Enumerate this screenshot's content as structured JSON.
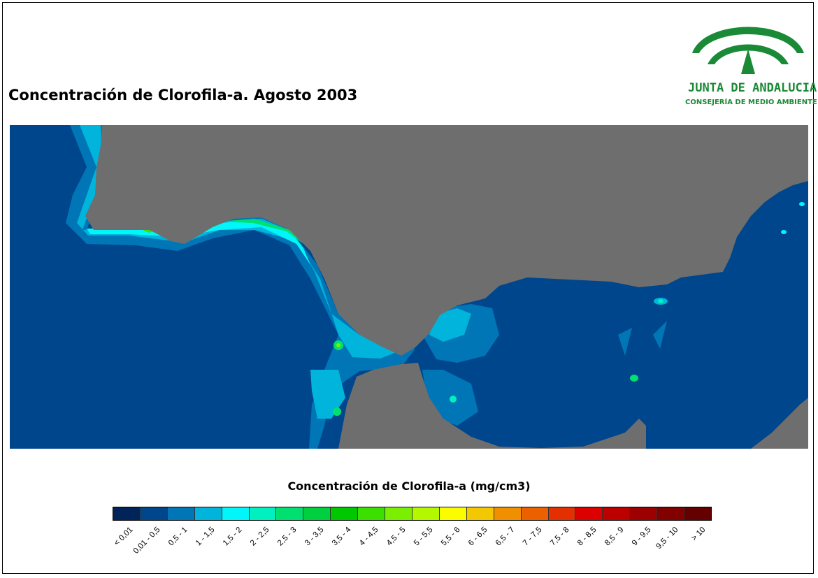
{
  "title": "Concentración de Clorofila-a. Agosto 2003",
  "logo": {
    "name": "JUNTA DE ANDALUCIA",
    "department": "CONSEJERÍA DE MEDIO AMBIENTE",
    "color": "#1a8a36"
  },
  "map": {
    "land_color": "#6e6e6e",
    "ocean_color": "#00468c",
    "regions": [
      "Atlantic Ocean",
      "Iberian Peninsula",
      "Strait of Gibraltar",
      "Alboran Sea",
      "North Africa"
    ]
  },
  "legend": {
    "title": "Concentración de Clorofila-a (mg/cm3)",
    "classes": [
      {
        "label": "< 0,01",
        "color": "#00245a"
      },
      {
        "label": "0,01 - 0,5",
        "color": "#00468c"
      },
      {
        "label": "0,5 - 1",
        "color": "#0076b6"
      },
      {
        "label": "1 - 1,5",
        "color": "#00b4dc"
      },
      {
        "label": "1,5 - 2",
        "color": "#00f6f8"
      },
      {
        "label": "2 - 2,5",
        "color": "#00f0c0"
      },
      {
        "label": "2,5 - 3",
        "color": "#00e070"
      },
      {
        "label": "3 - 3,5",
        "color": "#00d040"
      },
      {
        "label": "3,5 - 4",
        "color": "#00c800"
      },
      {
        "label": "4 - 4,5",
        "color": "#3ce000"
      },
      {
        "label": "4,5 - 5",
        "color": "#7af000"
      },
      {
        "label": "5 - 5,5",
        "color": "#b4f800"
      },
      {
        "label": "5,5 - 6",
        "color": "#fcfc00"
      },
      {
        "label": "6 - 6,5",
        "color": "#f4c800"
      },
      {
        "label": "6,5 - 7",
        "color": "#f09000"
      },
      {
        "label": "7 - 7,5",
        "color": "#ec6000"
      },
      {
        "label": "7,5 - 8",
        "color": "#e43000"
      },
      {
        "label": "8 - 8,5",
        "color": "#dc0000"
      },
      {
        "label": "8,5 - 9",
        "color": "#bc0000"
      },
      {
        "label": "9 - 9,5",
        "color": "#9c0000"
      },
      {
        "label": "9,5 - 10",
        "color": "#820000"
      },
      {
        "label": "> 10",
        "color": "#640000"
      }
    ]
  }
}
